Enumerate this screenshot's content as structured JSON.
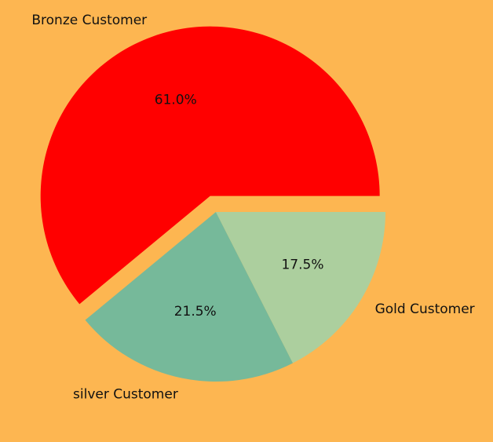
{
  "chart_data": {
    "type": "pie",
    "title": "",
    "slices": [
      {
        "label": "Bronze Customer",
        "value": 61.0,
        "pct_label": "61.0%",
        "color": "#FF0000",
        "exploded": true
      },
      {
        "label": "silver Customer",
        "value": 21.5,
        "pct_label": "21.5%",
        "color": "#76B99A",
        "exploded": false
      },
      {
        "label": "Gold Customer",
        "value": 17.5,
        "pct_label": "17.5%",
        "color": "#ACCF9E",
        "exploded": false
      }
    ],
    "start_angle_deg": 0,
    "direction": "counterclockwise",
    "legend": "none"
  },
  "colors": {
    "background": "#FDB651"
  }
}
